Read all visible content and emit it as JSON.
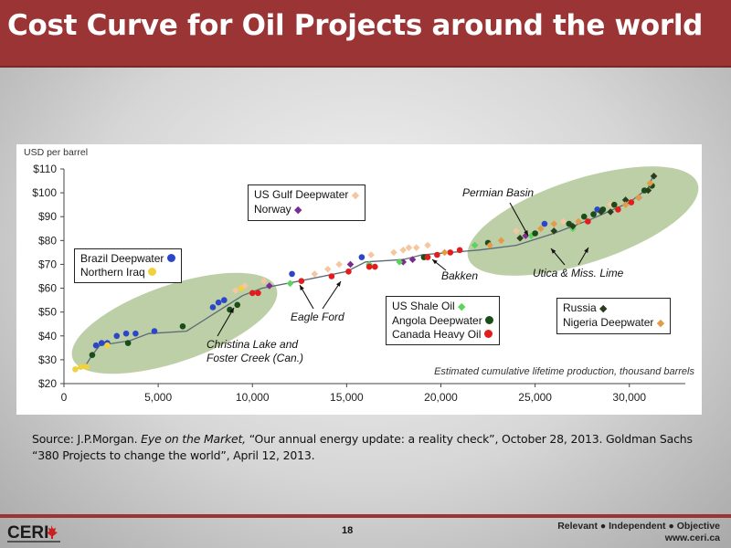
{
  "header": {
    "title": "Cost Curve for Oil Projects around the world"
  },
  "chart_data": {
    "type": "scatter",
    "ylabel": "USD per barrel",
    "xlabel": "Estimated cumulative lifetime production, thousand barrels",
    "xlim": [
      0,
      32000
    ],
    "ylim": [
      20,
      110
    ],
    "x_ticks": [
      "0",
      "5,000",
      "10,000",
      "15,000",
      "20,000",
      "25,000",
      "30,000"
    ],
    "y_ticks": [
      "$20",
      "$30",
      "$40",
      "$50",
      "$60",
      "$70",
      "$80",
      "$90",
      "$100",
      "$110"
    ],
    "grid": false,
    "curve": [
      [
        500,
        26
      ],
      [
        1100,
        27
      ],
      [
        1500,
        32
      ],
      [
        1900,
        36
      ],
      [
        3500,
        38
      ],
      [
        4500,
        41
      ],
      [
        6500,
        42
      ],
      [
        7500,
        47
      ],
      [
        8500,
        52
      ],
      [
        9500,
        57
      ],
      [
        10500,
        60
      ],
      [
        12500,
        63
      ],
      [
        15000,
        67
      ],
      [
        16000,
        71
      ],
      [
        18000,
        72
      ],
      [
        19000,
        74
      ],
      [
        22000,
        76
      ],
      [
        24000,
        78
      ],
      [
        26000,
        83
      ],
      [
        28000,
        89
      ],
      [
        30000,
        96
      ],
      [
        31000,
        102
      ],
      [
        31300,
        108
      ]
    ],
    "series": [
      {
        "name": "Brazil Deepwater",
        "color": "#2b46c8",
        "points": [
          [
            1700,
            36
          ],
          [
            2000,
            37
          ],
          [
            2300,
            37
          ],
          [
            2800,
            40
          ],
          [
            3300,
            41
          ],
          [
            3800,
            41
          ],
          [
            4800,
            42
          ],
          [
            7900,
            52
          ],
          [
            8200,
            54
          ],
          [
            8500,
            55
          ],
          [
            12100,
            66
          ],
          [
            15800,
            73
          ],
          [
            25500,
            87
          ],
          [
            28300,
            93
          ]
        ]
      },
      {
        "name": "Northern Iraq",
        "color": "#f2d23c",
        "points": [
          [
            600,
            26
          ],
          [
            900,
            27
          ],
          [
            1200,
            27
          ],
          [
            2300,
            36
          ],
          [
            9400,
            60
          ]
        ]
      },
      {
        "name": "US Gulf Deepwater",
        "color": "#f5c7a0",
        "points": [
          [
            9100,
            59
          ],
          [
            9600,
            61
          ],
          [
            10600,
            63
          ],
          [
            13300,
            66
          ],
          [
            14000,
            68
          ],
          [
            14600,
            70
          ],
          [
            16300,
            74
          ],
          [
            17500,
            75
          ],
          [
            18000,
            76
          ],
          [
            18300,
            77
          ],
          [
            18700,
            77
          ],
          [
            19300,
            78
          ],
          [
            24000,
            84
          ],
          [
            26500,
            88
          ],
          [
            29000,
            95
          ]
        ]
      },
      {
        "name": "Norway",
        "color": "#7b2d8e",
        "points": [
          [
            10900,
            61
          ],
          [
            15200,
            70
          ],
          [
            18000,
            71
          ],
          [
            18500,
            72
          ],
          [
            24500,
            82
          ],
          [
            30500,
            98
          ]
        ]
      },
      {
        "name": "US Shale Oil",
        "color": "#5bd45b",
        "points": [
          [
            12000,
            62
          ],
          [
            16200,
            70
          ],
          [
            17800,
            71
          ],
          [
            21800,
            78
          ],
          [
            24800,
            82
          ],
          [
            27000,
            85
          ]
        ]
      },
      {
        "name": "Angola Deepwater",
        "color": "#1a4d1a",
        "points": [
          [
            1500,
            32
          ],
          [
            3400,
            37
          ],
          [
            6300,
            44
          ],
          [
            8800,
            51
          ],
          [
            9200,
            53
          ],
          [
            19100,
            73
          ],
          [
            22500,
            79
          ],
          [
            25000,
            83
          ],
          [
            26800,
            87
          ],
          [
            27600,
            90
          ],
          [
            28100,
            91
          ],
          [
            28600,
            93
          ],
          [
            29200,
            95
          ],
          [
            30800,
            101
          ],
          [
            31200,
            103
          ]
        ]
      },
      {
        "name": "Canada Heavy Oil",
        "color": "#e31c1c",
        "points": [
          [
            10000,
            58
          ],
          [
            10300,
            58
          ],
          [
            12600,
            63
          ],
          [
            14200,
            65
          ],
          [
            15100,
            67
          ],
          [
            16200,
            69
          ],
          [
            16500,
            69
          ],
          [
            19300,
            73
          ],
          [
            19800,
            74
          ],
          [
            20500,
            75
          ],
          [
            21000,
            76
          ],
          [
            27800,
            88
          ],
          [
            29400,
            93
          ],
          [
            30100,
            96
          ]
        ]
      },
      {
        "name": "Russia",
        "color": "#2a3d1e",
        "points": [
          [
            24200,
            81
          ],
          [
            26000,
            84
          ],
          [
            27000,
            86
          ],
          [
            28500,
            92
          ],
          [
            29000,
            92
          ],
          [
            29800,
            97
          ],
          [
            31000,
            101
          ],
          [
            31300,
            107
          ]
        ]
      },
      {
        "name": "Nigeria Deepwater",
        "color": "#e59a48",
        "points": [
          [
            20200,
            75
          ],
          [
            22600,
            78
          ],
          [
            23200,
            80
          ],
          [
            25300,
            85
          ],
          [
            26000,
            87
          ],
          [
            27300,
            88
          ],
          [
            29800,
            95
          ],
          [
            30500,
            98
          ],
          [
            31100,
            104
          ]
        ]
      }
    ],
    "annotations": [
      "Permian Basin",
      "Utica & Miss. Lime",
      "Eagle Ford",
      "Bakken",
      "Christina Lake and Foster Creek (Can.)"
    ]
  },
  "legend_boxes": {
    "brazil": [
      "Brazil Deepwater",
      "Northern Iraq"
    ],
    "gulf": [
      "US Gulf Deepwater",
      "Norway"
    ],
    "shale": [
      "US Shale Oil",
      "Angola Deepwater",
      "Canada Heavy Oil"
    ],
    "russia": [
      "Russia",
      "Nigeria Deepwater"
    ]
  },
  "source": {
    "prefix": "Source: J.P.Morgan. ",
    "italic": "Eye on the Market,",
    "rest": " “Our annual energy update: a reality check”, October 28, 2013. Goldman Sachs “380 Projects to change the world”, April 12, 2013."
  },
  "footer": {
    "page_number": "18",
    "tagline1": "Relevant ● Independent ● Objective",
    "tagline2": "www.ceri.ca",
    "logo_text": "CERI"
  }
}
